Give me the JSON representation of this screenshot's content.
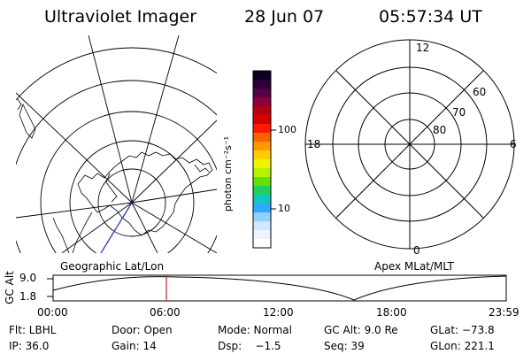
{
  "header": {
    "instrument": "Ultraviolet Imager",
    "date": "28 Jun 07",
    "time": "05:57:34 UT"
  },
  "colorbar": {
    "label": "photon cm⁻²s⁻¹",
    "ticks": [
      "100",
      "10"
    ],
    "colors": [
      "#0b0022",
      "#2a0038",
      "#560046",
      "#8b0036",
      "#b60010",
      "#d50000",
      "#ff1a00",
      "#ff6000",
      "#ff9900",
      "#ffcc00",
      "#f2f200",
      "#b8f000",
      "#66e000",
      "#1fd060",
      "#10c8c0",
      "#30a8ff",
      "#8fd0ff",
      "#cfe8ff",
      "#eef4ff",
      "#ffffff"
    ]
  },
  "polar_plot": {
    "mlt_labels": [
      "12",
      "18",
      "6",
      "0"
    ],
    "lat_labels": [
      "60",
      "70",
      "80"
    ]
  },
  "timeline": {
    "left_label": "Geographic Lat/Lon",
    "right_label": "Apex MLat/MLT",
    "axis_label": "GC Alt",
    "y_ticks": [
      "9.0",
      "1.8"
    ],
    "x_ticks": [
      "00:00",
      "06:00",
      "12:00",
      "18:00",
      "23:59"
    ],
    "marker_time": "05:57",
    "marker_color": "#c02020"
  },
  "info": {
    "flt": "Flt: LBHL",
    "door": "Door: Open",
    "mode": "Mode: Normal",
    "gc_alt": "GC Alt: 9.0 Re",
    "glat": "GLat: −73.8",
    "ip": "IP: 36.0",
    "gain": "Gain: 14",
    "dsp": "Dsp:    −1.5",
    "seq": "Seq: 39",
    "glon": "GLon: 221.1"
  }
}
